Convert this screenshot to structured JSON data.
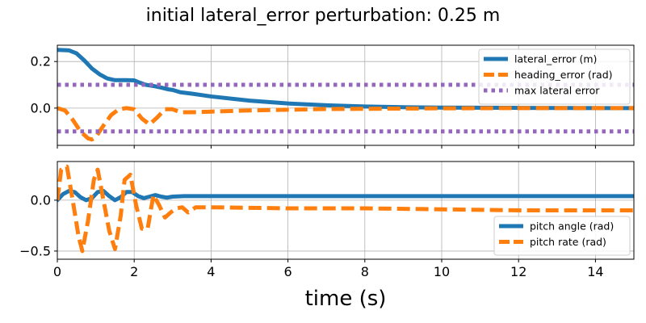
{
  "figure": {
    "title": "initial lateral_error perturbation: 0.25 m",
    "xlabel": "time (s)"
  },
  "chart_data": [
    {
      "type": "line",
      "xlim": [
        0,
        15
      ],
      "ylim": [
        -0.16,
        0.27
      ],
      "x_ticks": [
        0,
        2,
        4,
        6,
        8,
        10,
        12,
        14
      ],
      "y_ticks": [
        -0.2,
        0.0,
        0.2
      ],
      "y_tick_labels": [
        "−0.2",
        "0.0",
        "0.2"
      ],
      "grid": true,
      "legend_position": "top-right",
      "series": [
        {
          "name": "lateral_error (m)",
          "color": "#1f77b4",
          "style": "solid",
          "x": [
            0,
            0.3,
            0.5,
            0.7,
            0.9,
            1.1,
            1.3,
            1.5,
            1.8,
            2.0,
            2.1,
            2.3,
            2.5,
            2.7,
            2.9,
            3.0,
            3.2,
            3.5,
            4.0,
            5.0,
            6.0,
            7.0,
            8.0,
            9.0,
            10.0,
            12.0,
            15.0
          ],
          "y": [
            0.25,
            0.248,
            0.235,
            0.205,
            0.17,
            0.145,
            0.127,
            0.12,
            0.12,
            0.119,
            0.112,
            0.1,
            0.095,
            0.088,
            0.08,
            0.078,
            0.068,
            0.062,
            0.05,
            0.032,
            0.02,
            0.012,
            0.007,
            0.004,
            0.002,
            0.001,
            0.0
          ]
        },
        {
          "name": "heading_error (rad)",
          "color": "#ff7f0e",
          "style": "dashed",
          "x": [
            0,
            0.2,
            0.4,
            0.6,
            0.8,
            0.9,
            1.0,
            1.2,
            1.4,
            1.6,
            1.8,
            2.0,
            2.2,
            2.4,
            2.6,
            2.8,
            3.0,
            3.2,
            3.5,
            4.0,
            5.0,
            6.0,
            7.0,
            8.0,
            10.0,
            12.0,
            15.0
          ],
          "y": [
            0.0,
            -0.01,
            -0.05,
            -0.1,
            -0.13,
            -0.135,
            -0.125,
            -0.075,
            -0.03,
            -0.005,
            0.0,
            -0.005,
            -0.045,
            -0.07,
            -0.04,
            -0.005,
            -0.005,
            -0.018,
            -0.018,
            -0.015,
            -0.01,
            -0.007,
            -0.004,
            -0.003,
            -0.001,
            0.0,
            0.0
          ]
        },
        {
          "name": "max lateral error",
          "color": "#9467bd",
          "style": "dotted",
          "x": [
            0,
            15
          ],
          "y": [
            0.1,
            0.1
          ]
        },
        {
          "name": "",
          "color": "#9467bd",
          "style": "dotted",
          "x": [
            0,
            15
          ],
          "y": [
            -0.1,
            -0.1
          ]
        }
      ]
    },
    {
      "type": "line",
      "xlim": [
        0,
        15
      ],
      "ylim": [
        -0.58,
        0.38
      ],
      "x_ticks": [
        0,
        2,
        4,
        6,
        8,
        10,
        12,
        14
      ],
      "x_tick_labels": [
        "0",
        "2",
        "4",
        "6",
        "8",
        "10",
        "12",
        "14"
      ],
      "y_ticks": [
        -0.5,
        0.0
      ],
      "y_tick_labels": [
        "−0.5",
        "0.0"
      ],
      "grid": true,
      "legend_position": "lower-right",
      "series": [
        {
          "name": "pitch angle (rad)",
          "color": "#1f77b4",
          "style": "solid",
          "x": [
            0,
            0.15,
            0.3,
            0.45,
            0.6,
            0.75,
            0.9,
            1.05,
            1.2,
            1.35,
            1.5,
            1.65,
            1.8,
            1.95,
            2.1,
            2.25,
            2.4,
            2.55,
            2.7,
            2.85,
            3.0,
            3.3,
            3.6,
            4.0,
            6.0,
            10.0,
            15.0
          ],
          "y": [
            0.0,
            0.06,
            0.09,
            0.08,
            0.03,
            0.0,
            0.02,
            0.08,
            0.09,
            0.04,
            0.0,
            0.03,
            0.08,
            0.08,
            0.04,
            0.02,
            0.035,
            0.05,
            0.035,
            0.025,
            0.035,
            0.04,
            0.04,
            0.04,
            0.04,
            0.04,
            0.04
          ]
        },
        {
          "name": "pitch rate (rad)",
          "color": "#ff7f0e",
          "style": "dashed",
          "x": [
            0,
            0.1,
            0.25,
            0.4,
            0.55,
            0.65,
            0.8,
            0.95,
            1.05,
            1.2,
            1.35,
            1.5,
            1.65,
            1.75,
            1.9,
            2.05,
            2.2,
            2.35,
            2.5,
            2.65,
            2.8,
            2.95,
            3.1,
            3.25,
            3.4,
            3.6,
            4.0,
            6.0,
            8.0,
            10.0,
            12.0,
            15.0
          ],
          "y": [
            0.0,
            0.3,
            0.33,
            0.0,
            -0.35,
            -0.5,
            -0.2,
            0.2,
            0.3,
            0.0,
            -0.3,
            -0.48,
            -0.15,
            0.2,
            0.25,
            -0.05,
            -0.28,
            -0.28,
            0.05,
            -0.05,
            -0.17,
            -0.12,
            -0.08,
            -0.07,
            -0.12,
            -0.07,
            -0.07,
            -0.08,
            -0.08,
            -0.09,
            -0.1,
            -0.1
          ]
        }
      ]
    }
  ]
}
